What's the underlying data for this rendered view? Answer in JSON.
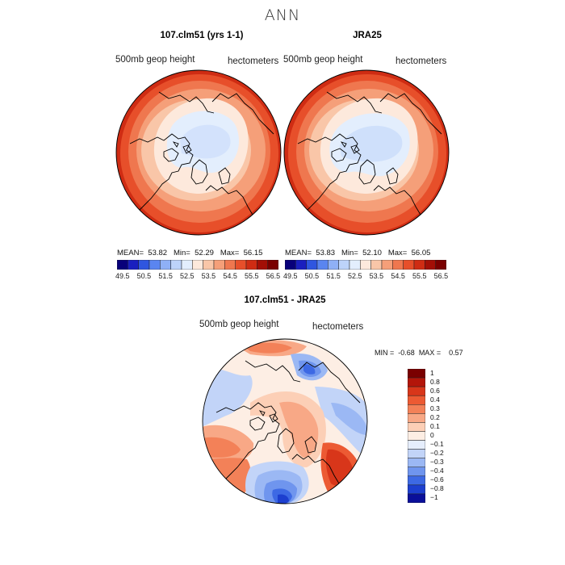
{
  "figure": {
    "title": "ANN"
  },
  "panels": [
    {
      "title": "107.clm51 (yrs 1-1)",
      "variable": "500mb  geop  height",
      "units": "hectometers",
      "stats": {
        "mean_label": "MEAN=",
        "mean": "53.82",
        "min_label": "Min=",
        "min": "52.29",
        "max_label": "Max=",
        "max": "56.15"
      }
    },
    {
      "title": "JRA25",
      "variable": "500mb  geop  height",
      "units": "hectometers",
      "stats": {
        "mean_label": "MEAN=",
        "mean": "53.83",
        "min_label": "Min=",
        "min": "52.10",
        "max_label": "Max=",
        "max": "56.05"
      }
    }
  ],
  "abs_colorbar": {
    "ticks": [
      "49.5",
      "50.5",
      "51.5",
      "52.5",
      "53.5",
      "54.5",
      "55.5",
      "56.5"
    ],
    "colors": [
      "#08007a",
      "#1a1fbf",
      "#2f56e0",
      "#5a85f0",
      "#8fb0f6",
      "#bdd3fa",
      "#e3eefd",
      "#fde9dc",
      "#f9c6a8",
      "#f59f79",
      "#ef774f",
      "#e74f2a",
      "#cf2c13",
      "#a30f06",
      "#7a0000"
    ]
  },
  "difference": {
    "title": "107.clm51 - JRA25",
    "variable": "500mb  geop  height",
    "units": "hectometers",
    "min_label": "MIN =",
    "min": "-0.68",
    "max_label": "MAX =",
    "max": "0.57",
    "colorbar": {
      "labels": [
        "1",
        "0.8",
        "0.6",
        "0.4",
        "0.3",
        "0.2",
        "0.1",
        "0",
        "−0.1",
        "−0.2",
        "−0.3",
        "−0.4",
        "−0.6",
        "−0.8",
        "−1"
      ],
      "colors": [
        "#7a0000",
        "#b3150a",
        "#d8361a",
        "#ec5a33",
        "#f38158",
        "#f8a886",
        "#fccfb6",
        "#fdeee4",
        "#e6eefc",
        "#c2d4f8",
        "#9bb8f4",
        "#6f95ee",
        "#3d69e4",
        "#1d3fcf",
        "#0a0f9a"
      ]
    }
  },
  "map_colors": {
    "land_outline": "#000000",
    "ocean_blue_light": "#cfe0fb",
    "ocean_blue_mid": "#a9c4f7",
    "warm_outer": "#e64a22",
    "warm_mid": "#f28f63",
    "warm_inner": "#fbd6c1"
  }
}
